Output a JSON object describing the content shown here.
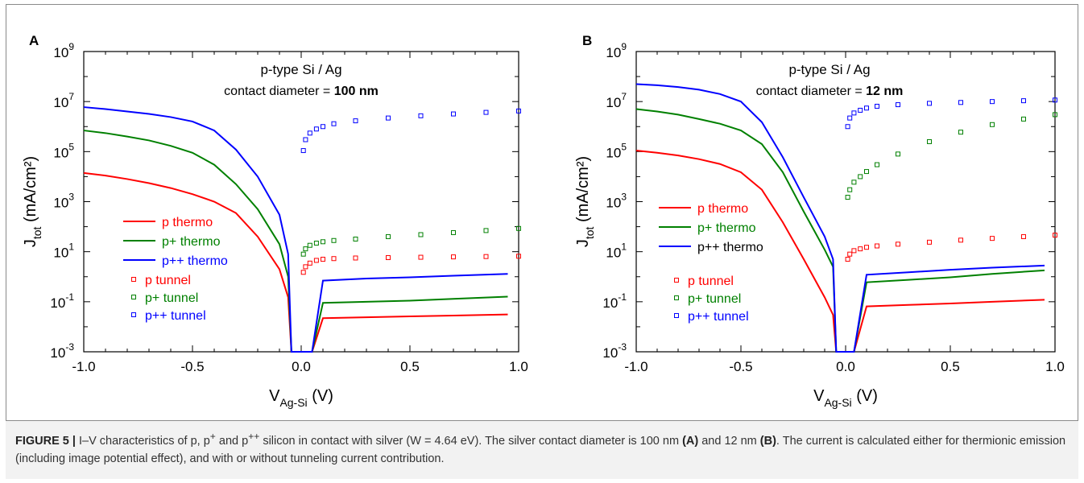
{
  "caption": {
    "figure_label": "FIGURE 5 |",
    "text_1": "I–V characteristics of p, p",
    "sup_1": "+",
    "text_2": " and p",
    "sup_2": "++",
    "text_3": " silicon in contact with silver (W = 4.64 eV). The silver contact diameter is 100 nm ",
    "ref_a": "(A)",
    "text_4": " and 12 nm ",
    "ref_b": "(B)",
    "text_5": ". The current is calculated either for thermionic emission (including image potential effect), and with or without tunneling current contribution."
  },
  "colors": {
    "p": "#ff0000",
    "p+": "#008000",
    "p++": "#0000ff"
  },
  "chart_data": [
    {
      "type": "line",
      "panel_label": "A",
      "annotation_line1": "p-type Si / Ag",
      "annotation_line2_prefix": "contact diameter = ",
      "annotation_line2_bold": "100  nm",
      "xlabel_main": "V",
      "xlabel_sub": "Ag-Si",
      "xlabel_unit": "(V)",
      "ylabel_main": "J",
      "ylabel_sub": "tot",
      "ylabel_unit": "(mA/cm²)",
      "xlim": [
        -1.0,
        1.0
      ],
      "ylim": [
        0.001,
        1000000000
      ],
      "yscale": "log",
      "xticks": [
        "-1.0",
        "-0.5",
        "0.0",
        "0.5",
        "1.0"
      ],
      "yticks": [
        {
          "base": "10",
          "exp": "-3"
        },
        {
          "base": "10",
          "exp": "-1"
        },
        {
          "base": "10",
          "exp": "1"
        },
        {
          "base": "10",
          "exp": "3"
        },
        {
          "base": "10",
          "exp": "5"
        },
        {
          "base": "10",
          "exp": "7"
        },
        {
          "base": "10",
          "exp": "9"
        }
      ],
      "legend_lines": [
        "p thermo",
        "p+ thermo",
        "p++ thermo"
      ],
      "legend_markers": [
        "p tunnel",
        "p+ tunnel",
        "p++ tunnel"
      ],
      "series": [
        {
          "name": "p thermo",
          "kind": "line",
          "color": "#ff0000",
          "x": [
            -1.0,
            -0.9,
            -0.8,
            -0.7,
            -0.6,
            -0.5,
            -0.4,
            -0.3,
            -0.2,
            -0.1,
            -0.06,
            -0.045,
            0.05,
            0.1,
            0.3,
            0.5,
            0.7,
            0.95
          ],
          "y": [
            14000,
            11000,
            8000,
            5500,
            3500,
            2000,
            1000,
            350,
            40,
            2,
            0.15,
            0.001,
            0.001,
            0.022,
            0.024,
            0.026,
            0.028,
            0.031
          ]
        },
        {
          "name": "p+ thermo",
          "kind": "line",
          "color": "#008000",
          "x": [
            -1.0,
            -0.9,
            -0.8,
            -0.7,
            -0.6,
            -0.5,
            -0.4,
            -0.3,
            -0.2,
            -0.1,
            -0.06,
            -0.045,
            0.05,
            0.1,
            0.3,
            0.5,
            0.7,
            0.95
          ],
          "y": [
            700000,
            550000,
            400000,
            280000,
            170000,
            90000,
            30000,
            5000,
            500,
            20,
            1.0,
            0.001,
            0.001,
            0.09,
            0.1,
            0.11,
            0.13,
            0.16
          ]
        },
        {
          "name": "p++ thermo",
          "kind": "line",
          "color": "#0000ff",
          "x": [
            -1.0,
            -0.9,
            -0.8,
            -0.7,
            -0.6,
            -0.5,
            -0.4,
            -0.3,
            -0.2,
            -0.1,
            -0.06,
            -0.045,
            0.05,
            0.1,
            0.3,
            0.5,
            0.7,
            0.95
          ],
          "y": [
            6000000,
            5000000,
            4000000,
            3200000,
            2400000,
            1600000,
            700000,
            120000,
            10000,
            300,
            8,
            0.001,
            0.001,
            0.7,
            0.85,
            0.95,
            1.1,
            1.3
          ]
        },
        {
          "name": "p tunnel",
          "kind": "marker",
          "color": "#ff0000",
          "x": [
            0.01,
            0.02,
            0.04,
            0.07,
            0.1,
            0.15,
            0.25,
            0.4,
            0.55,
            0.7,
            0.85,
            1.0
          ],
          "y": [
            1.5,
            2.5,
            3.5,
            4.5,
            5.0,
            5.3,
            5.6,
            5.8,
            6.0,
            6.2,
            6.4,
            6.6
          ]
        },
        {
          "name": "p+ tunnel",
          "kind": "marker",
          "color": "#008000",
          "x": [
            0.01,
            0.02,
            0.04,
            0.07,
            0.1,
            0.15,
            0.25,
            0.4,
            0.55,
            0.7,
            0.85,
            1.0
          ],
          "y": [
            8,
            13,
            18,
            22,
            25,
            28,
            32,
            40,
            48,
            58,
            70,
            85
          ]
        },
        {
          "name": "p++ tunnel",
          "kind": "marker",
          "color": "#0000ff",
          "x": [
            0.01,
            0.02,
            0.04,
            0.07,
            0.1,
            0.15,
            0.25,
            0.4,
            0.55,
            0.7,
            0.85,
            1.0
          ],
          "y": [
            110000,
            300000,
            550000,
            800000,
            1000000,
            1300000,
            1700000,
            2200000,
            2700000,
            3200000,
            3700000,
            4200000
          ]
        }
      ]
    },
    {
      "type": "line",
      "panel_label": "B",
      "annotation_line1": "p-type Si / Ag",
      "annotation_line2_prefix": "contact diameter = ",
      "annotation_line2_bold": "12  nm",
      "xlabel_main": "V",
      "xlabel_sub": "Ag-Si",
      "xlabel_unit": "(V)",
      "ylabel_main": "J",
      "ylabel_sub": "tot",
      "ylabel_unit": "(mA/cm²)",
      "xlim": [
        -1.0,
        1.0
      ],
      "ylim": [
        0.001,
        1000000000
      ],
      "yscale": "log",
      "xticks": [
        "-1.0",
        "-0.5",
        "0.0",
        "0.5",
        "1.0"
      ],
      "yticks": [
        {
          "base": "10",
          "exp": "-3"
        },
        {
          "base": "10",
          "exp": "-1"
        },
        {
          "base": "10",
          "exp": "1"
        },
        {
          "base": "10",
          "exp": "3"
        },
        {
          "base": "10",
          "exp": "5"
        },
        {
          "base": "10",
          "exp": "7"
        },
        {
          "base": "10",
          "exp": "9"
        }
      ],
      "legend_lines": [
        "p thermo",
        "p+ thermo",
        "p++ thermo"
      ],
      "legend_markers": [
        "p tunnel",
        "p+ tunnel",
        "p++ tunnel"
      ],
      "series": [
        {
          "name": "p thermo",
          "kind": "line",
          "color": "#ff0000",
          "x": [
            -1.0,
            -0.9,
            -0.8,
            -0.7,
            -0.6,
            -0.5,
            -0.4,
            -0.3,
            -0.2,
            -0.1,
            -0.06,
            -0.045,
            0.04,
            0.1,
            0.3,
            0.5,
            0.7,
            0.95
          ],
          "y": [
            110000,
            90000,
            70000,
            50000,
            32000,
            15000,
            3000,
            150,
            5,
            0.15,
            0.03,
            0.001,
            0.001,
            0.065,
            0.075,
            0.085,
            0.1,
            0.12
          ]
        },
        {
          "name": "p+ thermo",
          "kind": "line",
          "color": "#008000",
          "x": [
            -1.0,
            -0.9,
            -0.8,
            -0.7,
            -0.6,
            -0.5,
            -0.4,
            -0.3,
            -0.2,
            -0.1,
            -0.06,
            -0.045,
            0.04,
            0.1,
            0.3,
            0.5,
            0.7,
            0.95
          ],
          "y": [
            5000000,
            4000000,
            3000000,
            2000000,
            1300000,
            700000,
            200000,
            15000,
            400,
            12,
            2.5,
            0.001,
            0.001,
            0.6,
            0.75,
            0.95,
            1.3,
            1.8
          ]
        },
        {
          "name": "p++ thermo",
          "kind": "line",
          "color": "#0000ff",
          "x": [
            -1.0,
            -0.9,
            -0.8,
            -0.7,
            -0.6,
            -0.5,
            -0.4,
            -0.3,
            -0.2,
            -0.1,
            -0.06,
            -0.045,
            0.04,
            0.1,
            0.3,
            0.5,
            0.7,
            0.95
          ],
          "y": [
            50000000,
            45000000,
            38000000,
            30000000,
            20000000,
            10000000,
            1500000,
            60000,
            1500,
            40,
            5,
            0.001,
            0.001,
            1.2,
            1.5,
            1.9,
            2.3,
            2.8
          ]
        },
        {
          "name": "p tunnel",
          "kind": "marker",
          "color": "#ff0000",
          "x": [
            0.01,
            0.02,
            0.04,
            0.07,
            0.1,
            0.15,
            0.25,
            0.4,
            0.55,
            0.7,
            0.85,
            1.0
          ],
          "y": [
            5,
            8,
            11,
            13,
            15,
            17,
            20,
            24,
            29,
            34,
            40,
            46
          ]
        },
        {
          "name": "p+ tunnel",
          "kind": "marker",
          "color": "#008000",
          "x": [
            0.01,
            0.02,
            0.04,
            0.07,
            0.1,
            0.15,
            0.25,
            0.4,
            0.55,
            0.7,
            0.85,
            1.0
          ],
          "y": [
            1500,
            3000,
            6000,
            10000,
            16000,
            30000,
            80000,
            250000,
            600000,
            1200000,
            2000000,
            3000000
          ]
        },
        {
          "name": "p++ tunnel",
          "kind": "marker",
          "color": "#0000ff",
          "x": [
            0.01,
            0.02,
            0.04,
            0.07,
            0.1,
            0.15,
            0.25,
            0.4,
            0.55,
            0.7,
            0.85,
            1.0
          ],
          "y": [
            1000000,
            2200000,
            3500000,
            4500000,
            5500000,
            6500000,
            7500000,
            8500000,
            9200000,
            10000000,
            10800000,
            11500000
          ]
        }
      ]
    }
  ]
}
